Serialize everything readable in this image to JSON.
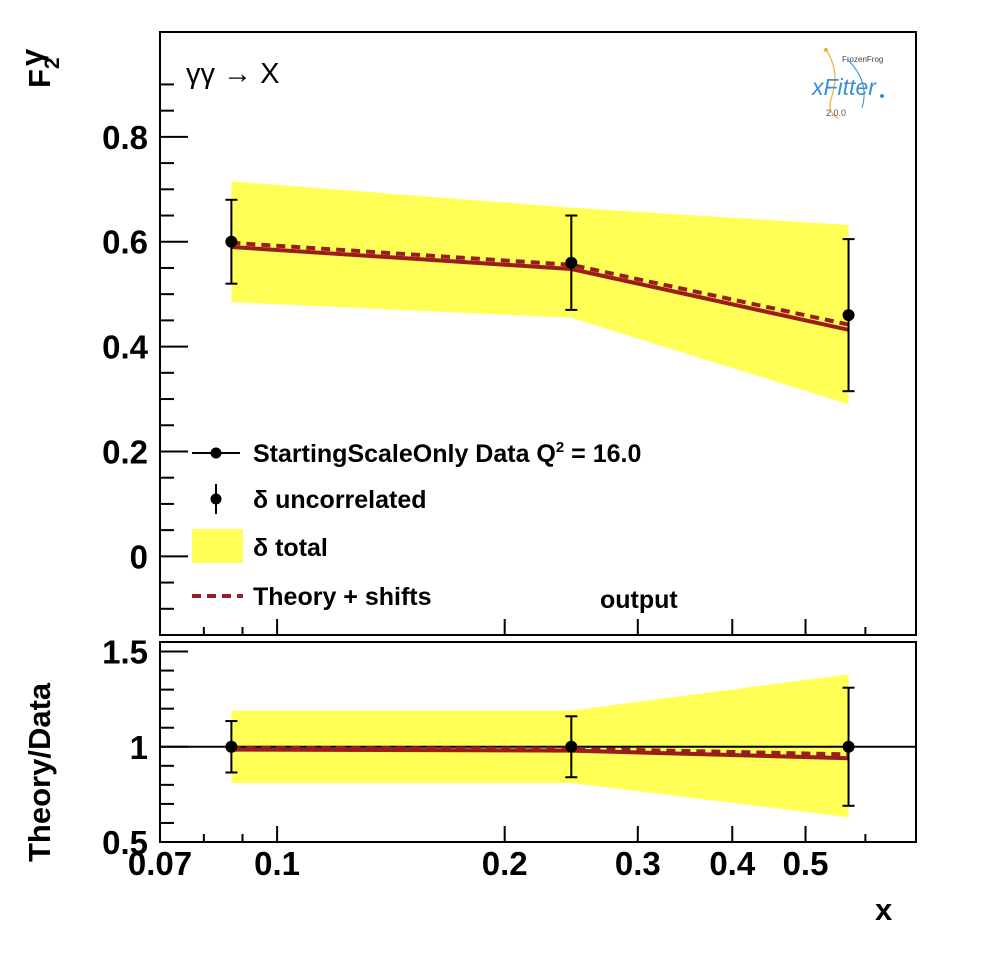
{
  "chart_data": [
    {
      "type": "line",
      "panel": "main",
      "xscale": "log",
      "ylabel": "F",
      "ylabel_sub": "2",
      "ylabel_sup": "γ",
      "ylim": [
        -0.15,
        1.0
      ],
      "yticks": [
        0,
        0.2,
        0.4,
        0.6,
        0.8
      ],
      "ytick_labels": [
        "0",
        "0.2",
        "0.4",
        "0.6",
        "0.8"
      ],
      "process_label": "γγ → X",
      "output_label": "output",
      "data": {
        "x": [
          0.087,
          0.245,
          0.57
        ],
        "y": [
          0.6,
          0.56,
          0.46
        ],
        "err_uncorrelated": [
          0.08,
          0.09,
          0.145
        ]
      },
      "band_total": {
        "x": [
          0.087,
          0.245,
          0.57
        ],
        "low": [
          0.485,
          0.455,
          0.29
        ],
        "high": [
          0.715,
          0.665,
          0.632
        ]
      },
      "theory": {
        "x": [
          0.087,
          0.245,
          0.57
        ],
        "y": [
          0.59,
          0.548,
          0.432
        ],
        "color": "#9b1c1c"
      },
      "theory_shifts": {
        "x": [
          0.087,
          0.245,
          0.57
        ],
        "y": [
          0.598,
          0.556,
          0.442
        ],
        "color": "#9b1c1c"
      },
      "band_color": "#ffff55",
      "legend": {
        "entries": [
          {
            "label": "StartingScaleOnly  Data Q",
            "sup": "2",
            "suffix": " = 16.0",
            "icon": "data-point"
          },
          {
            "label": "δ uncorrelated",
            "icon": "error-bar"
          },
          {
            "label": "δ total",
            "icon": "band"
          },
          {
            "label": "Theory + shifts",
            "icon": "dashed-line"
          }
        ]
      },
      "logo": {
        "small": "FrozenFrog",
        "name": "xFitter",
        "version": "2.0.0"
      }
    },
    {
      "type": "line",
      "panel": "ratio",
      "xscale": "log",
      "xlim": [
        0.07,
        0.7
      ],
      "xlabel": "x",
      "xticks": [
        0.07,
        0.1,
        0.2,
        0.3,
        0.4,
        0.5
      ],
      "xtick_labels": [
        "0.07",
        "0.1",
        "0.2",
        "0.3",
        "0.4",
        "0.5"
      ],
      "ylabel": "Theory/Data",
      "ylim": [
        0.5,
        1.55
      ],
      "yticks": [
        0.5,
        1,
        1.5
      ],
      "ytick_labels": [
        "0.5",
        "1",
        "1.5"
      ],
      "data": {
        "x": [
          0.087,
          0.245,
          0.57
        ],
        "y": [
          1.0,
          1.0,
          1.0
        ],
        "err_uncorrelated": [
          0.135,
          0.16,
          0.31
        ]
      },
      "band_total": {
        "x": [
          0.087,
          0.245,
          0.57
        ],
        "low": [
          0.81,
          0.81,
          0.63
        ],
        "high": [
          1.19,
          1.19,
          1.38
        ]
      },
      "theory": {
        "x": [
          0.087,
          0.245,
          0.57
        ],
        "y": [
          0.985,
          0.98,
          0.94
        ]
      },
      "theory_shifts": {
        "x": [
          0.087,
          0.245,
          0.57
        ],
        "y": [
          0.995,
          0.99,
          0.96
        ]
      }
    }
  ]
}
